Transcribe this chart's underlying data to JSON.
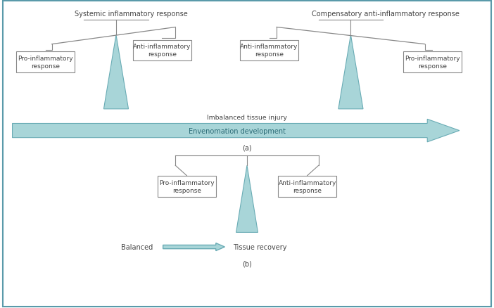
{
  "fig_width": 7.02,
  "fig_height": 4.39,
  "dpi": 100,
  "bg_color": "#ffffff",
  "border_color": "#5a9aaa",
  "teal": "#a8d5d8",
  "teal_edge": "#6aacb5",
  "box_edge_color": "#888888",
  "text_color": "#444444",
  "title_a": "(a)",
  "title_b": "(b)",
  "label_systemic": "Systemic inflammatory response",
  "label_compensatory": "Compensatory anti-inflammatory response",
  "label_pro_infl": "Pro-inflammatory\nresponse",
  "label_anti_infl": "Anti-inflammatory\nresponse",
  "label_imbalanced": "Imbalanced tissue injury",
  "label_envenomation": "Envenomation development",
  "label_balanced": "Balanced",
  "label_tissue": "Tissue recovery"
}
